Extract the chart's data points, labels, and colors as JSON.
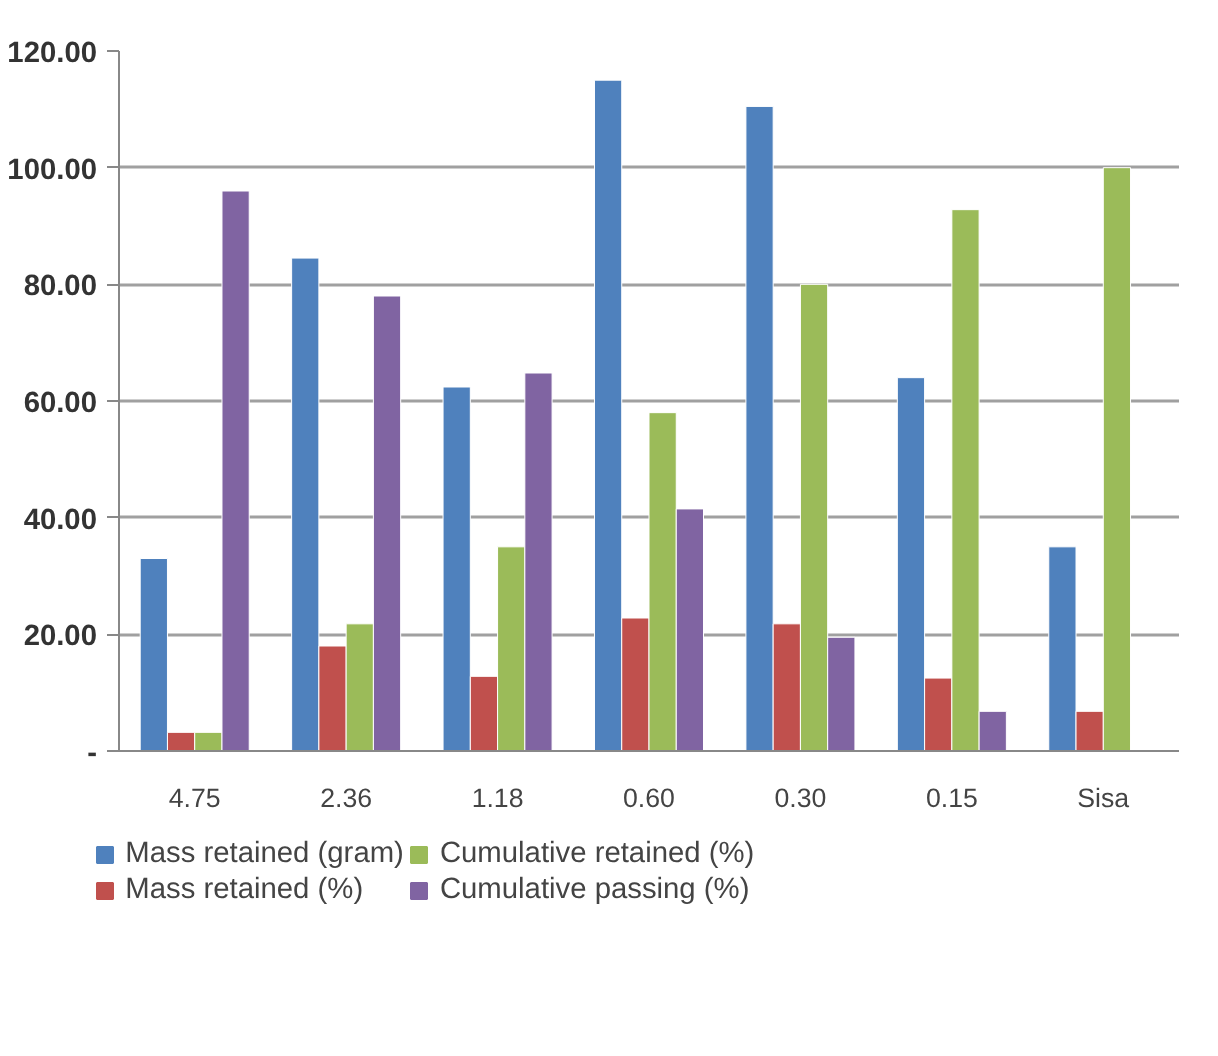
{
  "chart_data": {
    "type": "bar",
    "categories": [
      "4.75",
      "2.36",
      "1.18",
      "0.60",
      "0.30",
      "0.15",
      "Sisa"
    ],
    "series": [
      {
        "name": "Mass retained (gram)",
        "color": "#4f81bd",
        "values": [
          33,
          84.5,
          62.4,
          115,
          110.5,
          64,
          35
        ]
      },
      {
        "name": "Mass retained (%)",
        "color": "#c0504d",
        "values": [
          3.2,
          18,
          12.8,
          22.8,
          21.8,
          12.5,
          6.8
        ]
      },
      {
        "name": "Cumulative retained (%)",
        "color": "#9bbb59",
        "values": [
          3.2,
          21.8,
          35,
          58,
          80,
          92.8,
          100
        ]
      },
      {
        "name": "Cumulative passing (%)",
        "color": "#8064a2",
        "values": [
          96,
          78,
          64.8,
          41.5,
          19.5,
          6.8,
          null
        ]
      }
    ],
    "ylim": [
      0,
      120
    ],
    "yticks": [
      {
        "value": 0,
        "label": "-"
      },
      {
        "value": 20,
        "label": "20.00"
      },
      {
        "value": 40,
        "label": "40.00"
      },
      {
        "value": 60,
        "label": "60.00"
      },
      {
        "value": 80,
        "label": "80.00"
      },
      {
        "value": 100,
        "label": "100.00"
      },
      {
        "value": 120,
        "label": "120.00"
      }
    ],
    "grid": "y",
    "legend": "bottom"
  }
}
